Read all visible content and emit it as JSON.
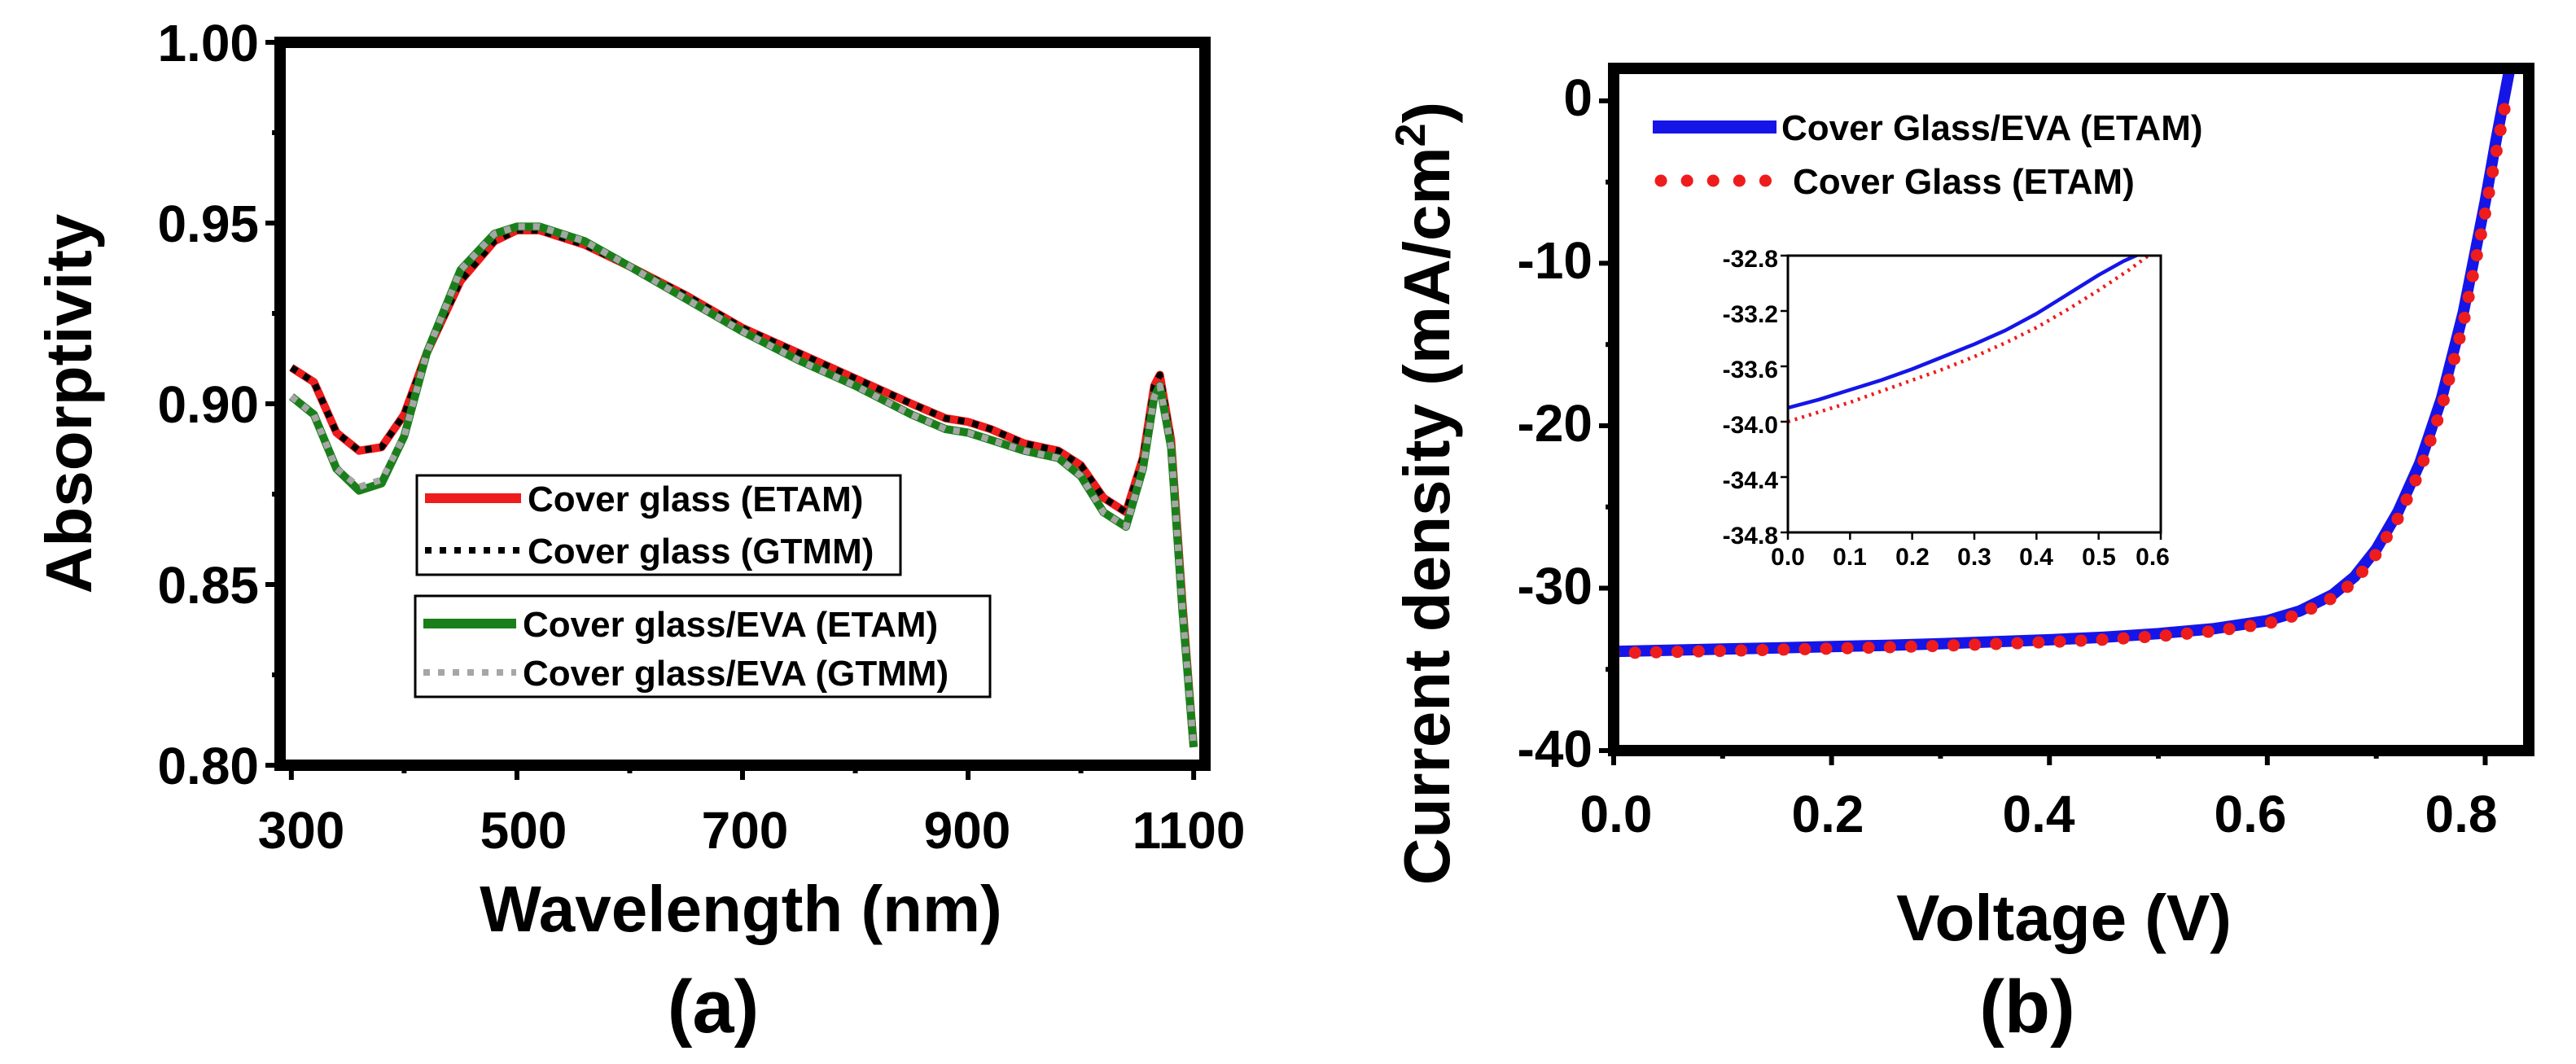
{
  "chart_data": [
    {
      "id": "a",
      "type": "line",
      "panel_label": "(a)",
      "xlabel": "Wavelength (nm)",
      "ylabel": "Absorptivity",
      "xlim": [
        290,
        1110
      ],
      "ylim": [
        0.8,
        1.0
      ],
      "xticks": [
        300,
        500,
        700,
        900,
        1100
      ],
      "xtick_labels": [
        "300",
        "500",
        "700",
        "900",
        "1100"
      ],
      "yticks": [
        0.8,
        0.85,
        0.9,
        0.95,
        1.0
      ],
      "ytick_labels": [
        "0.80",
        "0.85",
        "0.90",
        "0.95",
        "1.00"
      ],
      "grid": false,
      "legend_groups": [
        [
          "Cover glass (ETAM)",
          "Cover glass (GTMM)"
        ],
        [
          "Cover glass/EVA (ETAM)",
          "Cover glass/EVA (GTMM)"
        ]
      ],
      "series": [
        {
          "name": "Cover glass (ETAM)",
          "color": "#ee1c1c",
          "style": "solid",
          "x": [
            300,
            320,
            340,
            360,
            380,
            400,
            420,
            450,
            480,
            500,
            520,
            560,
            600,
            650,
            700,
            750,
            800,
            850,
            880,
            900,
            920,
            950,
            980,
            1000,
            1020,
            1040,
            1055,
            1065,
            1070,
            1080,
            1090,
            1100
          ],
          "y": [
            0.91,
            0.906,
            0.892,
            0.887,
            0.888,
            0.897,
            0.914,
            0.934,
            0.945,
            0.948,
            0.948,
            0.944,
            0.938,
            0.93,
            0.921,
            0.914,
            0.907,
            0.9,
            0.896,
            0.895,
            0.893,
            0.889,
            0.887,
            0.883,
            0.874,
            0.87,
            0.885,
            0.905,
            0.908,
            0.89,
            0.845,
            0.805
          ]
        },
        {
          "name": "Cover glass (GTMM)",
          "color": "#000000",
          "style": "dotted",
          "x": [
            300,
            320,
            340,
            360,
            380,
            400,
            420,
            450,
            480,
            500,
            520,
            560,
            600,
            650,
            700,
            750,
            800,
            850,
            880,
            900,
            920,
            950,
            980,
            1000,
            1020,
            1040,
            1055,
            1065,
            1070,
            1080,
            1090,
            1100
          ],
          "y": [
            0.91,
            0.906,
            0.892,
            0.887,
            0.888,
            0.897,
            0.914,
            0.934,
            0.945,
            0.948,
            0.948,
            0.944,
            0.938,
            0.93,
            0.921,
            0.914,
            0.907,
            0.9,
            0.896,
            0.895,
            0.893,
            0.889,
            0.887,
            0.883,
            0.874,
            0.87,
            0.885,
            0.905,
            0.908,
            0.89,
            0.845,
            0.805
          ]
        },
        {
          "name": "Cover glass/EVA (ETAM)",
          "color": "#1a7f1a",
          "style": "solid",
          "x": [
            300,
            320,
            340,
            360,
            380,
            400,
            420,
            450,
            480,
            500,
            520,
            560,
            600,
            650,
            700,
            750,
            800,
            850,
            880,
            900,
            920,
            950,
            980,
            1000,
            1020,
            1040,
            1055,
            1065,
            1070,
            1080,
            1090,
            1100
          ],
          "y": [
            0.902,
            0.897,
            0.882,
            0.876,
            0.878,
            0.891,
            0.914,
            0.937,
            0.947,
            0.949,
            0.949,
            0.945,
            0.938,
            0.929,
            0.92,
            0.912,
            0.905,
            0.897,
            0.893,
            0.892,
            0.89,
            0.887,
            0.885,
            0.88,
            0.87,
            0.866,
            0.882,
            0.902,
            0.905,
            0.888,
            0.843,
            0.805
          ]
        },
        {
          "name": "Cover glass/EVA (GTMM)",
          "color": "#a6a6a6",
          "style": "dotted",
          "x": [
            300,
            320,
            340,
            360,
            380,
            400,
            420,
            450,
            480,
            500,
            520,
            560,
            600,
            650,
            700,
            750,
            800,
            850,
            880,
            900,
            920,
            950,
            980,
            1000,
            1020,
            1040,
            1055,
            1065,
            1070,
            1080,
            1090,
            1100
          ],
          "y": [
            0.902,
            0.897,
            0.882,
            0.877,
            0.879,
            0.891,
            0.914,
            0.937,
            0.947,
            0.949,
            0.949,
            0.945,
            0.938,
            0.929,
            0.92,
            0.912,
            0.905,
            0.897,
            0.893,
            0.892,
            0.89,
            0.887,
            0.885,
            0.88,
            0.87,
            0.866,
            0.882,
            0.902,
            0.905,
            0.888,
            0.843,
            0.805
          ]
        }
      ]
    },
    {
      "id": "b",
      "type": "line",
      "panel_label": "(b)",
      "xlabel": "Voltage (V)",
      "ylabel": "Current density (mA/cm",
      "ylabel_superscript": "2",
      "ylabel_close": ")",
      "xlim": [
        0.0,
        0.84
      ],
      "ylim": [
        -40,
        2
      ],
      "xticks": [
        0.0,
        0.2,
        0.4,
        0.6,
        0.8
      ],
      "xtick_labels": [
        "0.0",
        "0.2",
        "0.4",
        "0.6",
        "0.8"
      ],
      "yticks": [
        -40,
        -30,
        -20,
        -10,
        0
      ],
      "ytick_labels": [
        "-40",
        "-30",
        "-20",
        "-10",
        "0"
      ],
      "grid": false,
      "legend": [
        "Cover Glass/EVA (ETAM)",
        "Cover Glass (ETAM)"
      ],
      "series": [
        {
          "name": "Cover Glass/EVA (ETAM)",
          "color": "#1515e8",
          "style": "solid",
          "x": [
            0.0,
            0.05,
            0.1,
            0.15,
            0.2,
            0.25,
            0.3,
            0.35,
            0.4,
            0.45,
            0.5,
            0.55,
            0.6,
            0.63,
            0.66,
            0.68,
            0.7,
            0.72,
            0.74,
            0.76,
            0.78,
            0.8,
            0.81,
            0.822
          ],
          "y": [
            -33.9,
            -33.82,
            -33.75,
            -33.68,
            -33.6,
            -33.52,
            -33.42,
            -33.3,
            -33.18,
            -33.02,
            -32.8,
            -32.5,
            -32.0,
            -31.4,
            -30.4,
            -29.3,
            -27.6,
            -25.3,
            -22.3,
            -18.3,
            -13.0,
            -6.2,
            -2.4,
            1.8
          ]
        },
        {
          "name": "Cover Glass (ETAM)",
          "color": "#ee1c1c",
          "style": "dotted",
          "x": [
            0.0,
            0.05,
            0.1,
            0.15,
            0.2,
            0.25,
            0.3,
            0.35,
            0.4,
            0.45,
            0.5,
            0.55,
            0.6,
            0.63,
            0.66,
            0.68,
            0.7,
            0.72,
            0.74,
            0.76,
            0.78,
            0.8,
            0.81,
            0.82
          ],
          "y": [
            -34.0,
            -33.93,
            -33.86,
            -33.79,
            -33.72,
            -33.64,
            -33.55,
            -33.44,
            -33.32,
            -33.17,
            -32.96,
            -32.66,
            -32.18,
            -31.6,
            -30.6,
            -29.6,
            -27.9,
            -25.7,
            -22.8,
            -18.9,
            -13.7,
            -6.9,
            -3.2,
            0.3
          ]
        }
      ]
    },
    {
      "id": "b-inset",
      "type": "line",
      "xlim": [
        0.0,
        0.6
      ],
      "ylim": [
        -34.8,
        -32.8
      ],
      "xticks": [
        0.0,
        0.1,
        0.2,
        0.3,
        0.4,
        0.5,
        0.6
      ],
      "xtick_labels": [
        "0.0",
        "0.1",
        "0.2",
        "0.3",
        "0.4",
        "0.5",
        "0.6"
      ],
      "yticks": [
        -34.8,
        -34.4,
        -34.0,
        -33.6,
        -33.2,
        -32.8
      ],
      "ytick_labels": [
        "-34.8",
        "-34.4",
        "-34.0",
        "-33.6",
        "-33.2",
        "-32.8"
      ],
      "series": [
        {
          "name": "Cover Glass/EVA (ETAM)",
          "color": "#1515e8",
          "style": "solid",
          "x": [
            0.0,
            0.05,
            0.1,
            0.15,
            0.2,
            0.25,
            0.3,
            0.35,
            0.4,
            0.45,
            0.5,
            0.54,
            0.57
          ],
          "y": [
            -33.9,
            -33.84,
            -33.77,
            -33.7,
            -33.62,
            -33.53,
            -33.44,
            -33.34,
            -33.22,
            -33.08,
            -32.94,
            -32.84,
            -32.78
          ]
        },
        {
          "name": "Cover Glass (ETAM)",
          "color": "#ee1c1c",
          "style": "dotted",
          "x": [
            0.0,
            0.05,
            0.1,
            0.15,
            0.2,
            0.25,
            0.3,
            0.35,
            0.4,
            0.45,
            0.5,
            0.55,
            0.58
          ],
          "y": [
            -34.0,
            -33.93,
            -33.86,
            -33.78,
            -33.7,
            -33.62,
            -33.53,
            -33.43,
            -33.32,
            -33.19,
            -33.05,
            -32.9,
            -32.8
          ]
        }
      ]
    }
  ]
}
